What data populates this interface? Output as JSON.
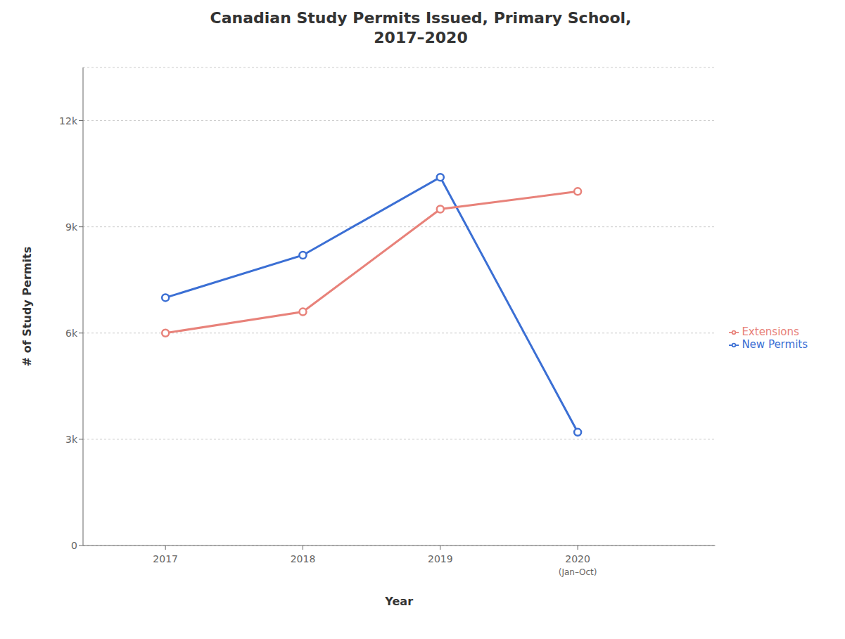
{
  "chart_data": {
    "type": "line",
    "title": "Canadian Study Permits Issued, Primary School,\n2017–2020",
    "xlabel": "Year",
    "ylabel": "# of Study Permits",
    "x": [
      2017,
      2018,
      2019,
      2020
    ],
    "series": [
      {
        "name": "New Permits",
        "color": "#3B6FD4",
        "values": [
          7000,
          8200,
          10400,
          3200
        ],
        "marker": "circle",
        "line_style": "solid"
      },
      {
        "name": "Extensions",
        "color": "#E8827A",
        "values": [
          6000,
          6600,
          9500,
          10000
        ],
        "marker": "circle",
        "line_style": "solid"
      }
    ],
    "xlim": [
      2016.4,
      2021.0
    ],
    "xticks": [
      2017,
      2018,
      2019,
      2020
    ],
    "ylim": [
      0,
      13500
    ],
    "yticks": [
      0,
      {
        "value": 3000,
        "label": "3k"
      },
      {
        "value": 6000,
        "label": "6k"
      },
      {
        "value": 9000,
        "label": "9k"
      },
      {
        "value": 12000,
        "label": "12k"
      }
    ],
    "grid": true,
    "legend": "right",
    "annotations": [
      {
        "text": "(Jan–Oct)",
        "x": 2020
      }
    ]
  }
}
